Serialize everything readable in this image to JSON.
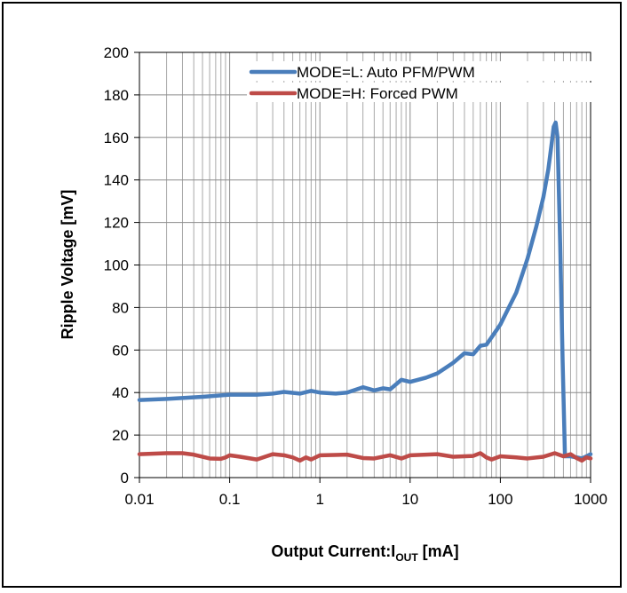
{
  "chart_data": {
    "type": "line",
    "xscale": "log",
    "xlim": [
      0.01,
      1000
    ],
    "ylim": [
      0,
      200
    ],
    "x_ticks": [
      0.01,
      0.1,
      1,
      10,
      100,
      1000
    ],
    "x_tick_labels": [
      "0.01",
      "0.1",
      "1",
      "10",
      "100",
      "1000"
    ],
    "y_ticks": [
      0,
      20,
      40,
      60,
      80,
      100,
      120,
      140,
      160,
      180,
      200
    ],
    "y_tick_labels": [
      "0",
      "20",
      "40",
      "60",
      "80",
      "100",
      "120",
      "140",
      "160",
      "180",
      "200"
    ],
    "xlabel_main": "Output Current:I",
    "xlabel_sub": "OUT",
    "xlabel_unit": " [mA]",
    "ylabel": "Ripple Voltage  [mV]",
    "grid": true,
    "legend_position": "top-right",
    "series": [
      {
        "name": "MODE=L: Auto PFM/PWM",
        "color": "#4a7ebb",
        "points": [
          [
            0.01,
            36.5
          ],
          [
            0.02,
            37
          ],
          [
            0.05,
            38
          ],
          [
            0.1,
            39
          ],
          [
            0.2,
            39
          ],
          [
            0.3,
            39.5
          ],
          [
            0.4,
            40.3
          ],
          [
            0.6,
            39.5
          ],
          [
            0.8,
            40.8
          ],
          [
            1,
            40
          ],
          [
            1.5,
            39.5
          ],
          [
            2,
            40
          ],
          [
            3,
            42.5
          ],
          [
            4,
            41
          ],
          [
            5,
            42
          ],
          [
            6,
            41.5
          ],
          [
            8,
            46
          ],
          [
            10,
            45
          ],
          [
            15,
            47
          ],
          [
            20,
            49
          ],
          [
            30,
            54
          ],
          [
            40,
            58.5
          ],
          [
            50,
            58
          ],
          [
            60,
            62
          ],
          [
            70,
            62.5
          ],
          [
            80,
            66
          ],
          [
            100,
            72
          ],
          [
            150,
            87
          ],
          [
            200,
            103
          ],
          [
            250,
            118
          ],
          [
            300,
            132
          ],
          [
            340,
            145
          ],
          [
            370,
            157
          ],
          [
            390,
            165
          ],
          [
            410,
            167
          ],
          [
            430,
            160
          ],
          [
            460,
            110
          ],
          [
            490,
            55
          ],
          [
            520,
            10
          ],
          [
            600,
            10
          ],
          [
            700,
            9.5
          ],
          [
            800,
            9
          ],
          [
            900,
            10
          ],
          [
            1000,
            11
          ]
        ]
      },
      {
        "name": "MODE=H: Forced PWM",
        "color": "#be4b48",
        "points": [
          [
            0.01,
            11
          ],
          [
            0.02,
            11.5
          ],
          [
            0.03,
            11.5
          ],
          [
            0.04,
            10.8
          ],
          [
            0.06,
            9
          ],
          [
            0.08,
            8.8
          ],
          [
            0.09,
            9.5
          ],
          [
            0.1,
            10.5
          ],
          [
            0.13,
            9.8
          ],
          [
            0.2,
            8.5
          ],
          [
            0.3,
            11
          ],
          [
            0.4,
            10.5
          ],
          [
            0.5,
            9.5
          ],
          [
            0.6,
            8
          ],
          [
            0.7,
            9.5
          ],
          [
            0.8,
            8.5
          ],
          [
            1,
            10.5
          ],
          [
            2,
            10.8
          ],
          [
            3,
            9.2
          ],
          [
            4,
            9
          ],
          [
            6,
            10.5
          ],
          [
            8,
            9
          ],
          [
            10,
            10.5
          ],
          [
            20,
            11
          ],
          [
            30,
            9.8
          ],
          [
            50,
            10.2
          ],
          [
            60,
            11.5
          ],
          [
            70,
            9.5
          ],
          [
            80,
            8.5
          ],
          [
            100,
            10
          ],
          [
            150,
            9.5
          ],
          [
            200,
            9
          ],
          [
            300,
            9.8
          ],
          [
            400,
            11.5
          ],
          [
            500,
            10
          ],
          [
            600,
            11
          ],
          [
            700,
            9.2
          ],
          [
            800,
            8
          ],
          [
            900,
            9.5
          ],
          [
            1000,
            9
          ]
        ]
      }
    ]
  }
}
